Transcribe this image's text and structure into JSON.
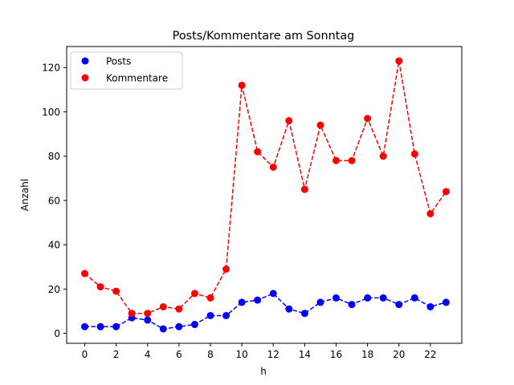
{
  "chart_data": {
    "type": "line",
    "title": "Posts/Kommentare am Sonntag",
    "xlabel": "h",
    "ylabel": "Anzahl",
    "x": [
      0,
      1,
      2,
      3,
      4,
      5,
      6,
      7,
      8,
      9,
      10,
      11,
      12,
      13,
      14,
      15,
      16,
      17,
      18,
      19,
      20,
      21,
      22,
      23
    ],
    "series": [
      {
        "name": "Posts",
        "color": "#0000ff",
        "values": [
          3,
          3,
          3,
          7,
          6,
          2,
          3,
          4,
          8,
          8,
          14,
          15,
          18,
          11,
          9,
          14,
          16,
          13,
          16,
          16,
          13,
          16,
          12,
          14
        ]
      },
      {
        "name": "Kommentare",
        "color": "#ff0000",
        "values": [
          27,
          21,
          19,
          9,
          9,
          12,
          11,
          18,
          16,
          29,
          112,
          82,
          75,
          96,
          65,
          94,
          78,
          78,
          97,
          80,
          123,
          81,
          54,
          64
        ]
      }
    ],
    "xlim": [
      -1.15,
      24.0
    ],
    "ylim": [
      -4.5,
      129.5
    ],
    "xticks": [
      0,
      2,
      4,
      6,
      8,
      10,
      12,
      14,
      16,
      18,
      20,
      22
    ],
    "yticks": [
      0,
      20,
      40,
      60,
      80,
      100,
      120
    ],
    "grid": false,
    "legend": "top-left"
  }
}
